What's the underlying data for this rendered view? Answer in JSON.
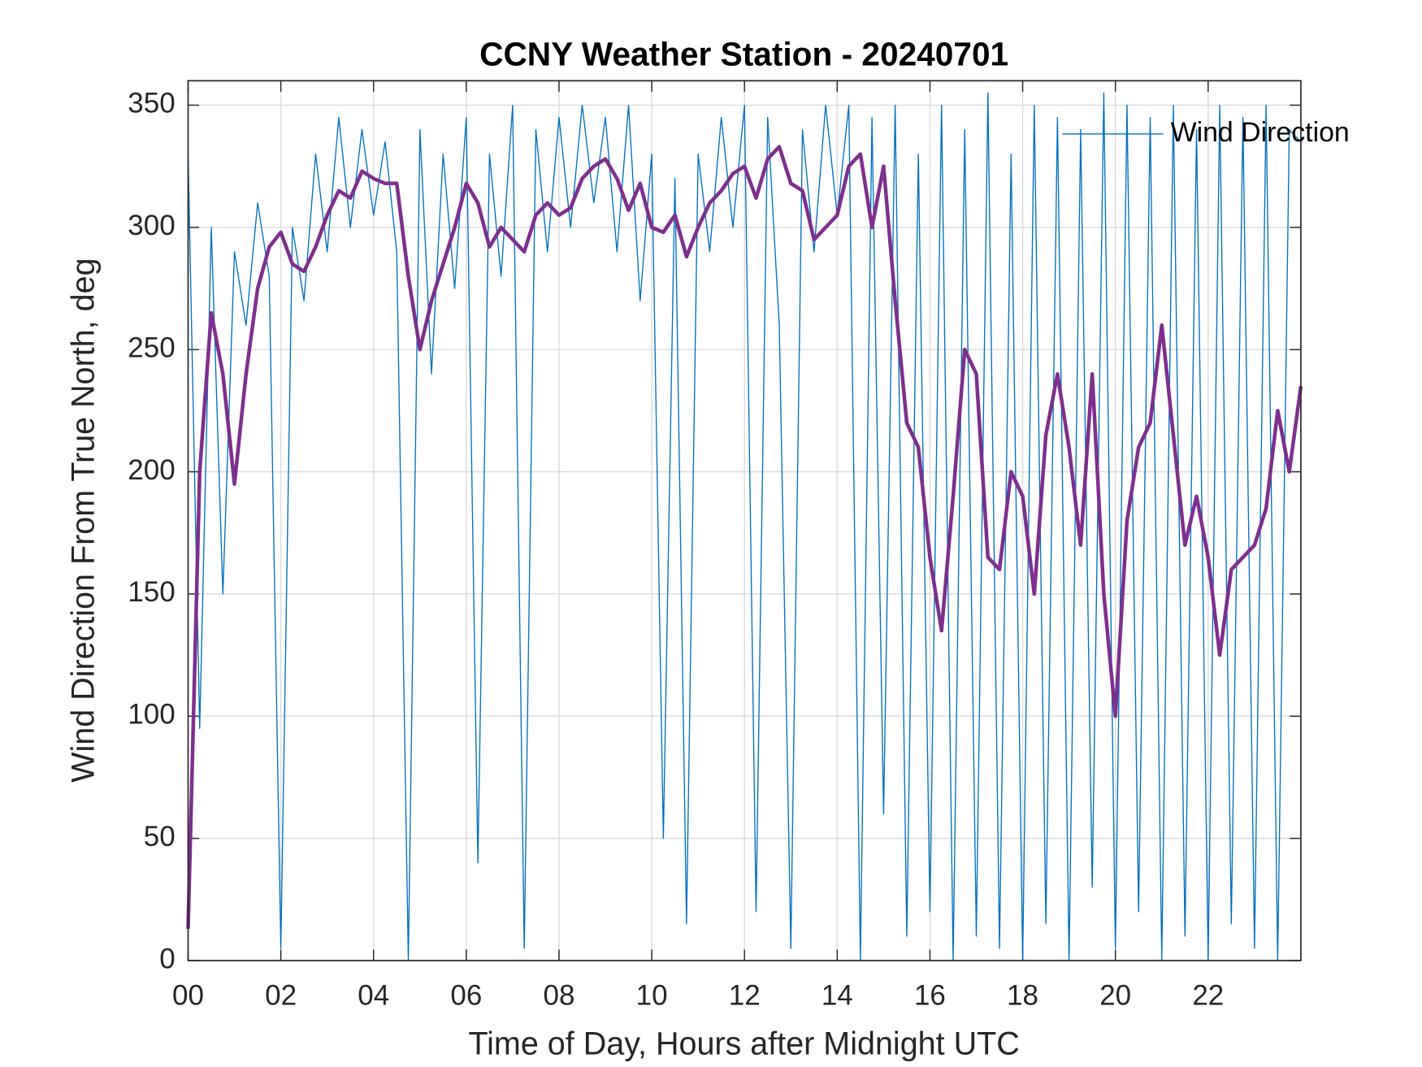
{
  "chart_data": {
    "type": "line",
    "title": "CCNY Weather Station - 20240701",
    "xlabel": "Time of Day, Hours after Midnight UTC",
    "ylabel": "Wind Direction From True North, deg",
    "x": [
      0,
      0.25,
      0.5,
      0.75,
      1,
      1.25,
      1.5,
      1.75,
      2,
      2.25,
      2.5,
      2.75,
      3,
      3.25,
      3.5,
      3.75,
      4,
      4.25,
      4.5,
      4.75,
      5,
      5.25,
      5.5,
      5.75,
      6,
      6.25,
      6.5,
      6.75,
      7,
      7.25,
      7.5,
      7.75,
      8,
      8.25,
      8.5,
      8.75,
      9,
      9.25,
      9.5,
      9.75,
      10,
      10.25,
      10.5,
      10.75,
      11,
      11.25,
      11.5,
      11.75,
      12,
      12.25,
      12.5,
      12.75,
      13,
      13.25,
      13.5,
      13.75,
      14,
      14.25,
      14.5,
      14.75,
      15,
      15.25,
      15.5,
      15.75,
      16,
      16.25,
      16.5,
      16.75,
      17,
      17.25,
      17.5,
      17.75,
      18,
      18.25,
      18.5,
      18.75,
      19,
      19.25,
      19.5,
      19.75,
      20,
      20.25,
      20.5,
      20.75,
      21,
      21.25,
      21.5,
      21.75,
      22,
      22.25,
      22.5,
      22.75,
      23,
      23.25,
      23.5,
      23.75,
      24
    ],
    "series": [
      {
        "name": "Wind Direction",
        "color": "#0072BD",
        "width": 1.2,
        "values": [
          330,
          95,
          300,
          150,
          290,
          260,
          310,
          280,
          5,
          300,
          270,
          330,
          290,
          345,
          300,
          340,
          305,
          335,
          290,
          0,
          340,
          240,
          330,
          275,
          345,
          40,
          330,
          280,
          350,
          5,
          340,
          290,
          345,
          300,
          350,
          310,
          345,
          290,
          350,
          270,
          330,
          50,
          320,
          15,
          330,
          290,
          345,
          300,
          350,
          20,
          345,
          260,
          5,
          340,
          290,
          350,
          305,
          350,
          0,
          345,
          60,
          350,
          10,
          330,
          20,
          350,
          0,
          340,
          10,
          355,
          5,
          330,
          0,
          350,
          15,
          345,
          0,
          340,
          30,
          355,
          5,
          350,
          20,
          345,
          0,
          350,
          10,
          340,
          0,
          350,
          15,
          345,
          5,
          350,
          0,
          340,
          335
        ]
      },
      {
        "color": "#7E2F8E",
        "width": 4,
        "values": [
          13,
          200,
          265,
          240,
          195,
          240,
          275,
          292,
          298,
          285,
          282,
          292,
          305,
          315,
          312,
          323,
          320,
          318,
          318,
          280,
          250,
          270,
          285,
          300,
          318,
          310,
          292,
          300,
          295,
          290,
          305,
          310,
          305,
          308,
          320,
          325,
          328,
          320,
          307,
          318,
          300,
          298,
          305,
          288,
          300,
          310,
          315,
          322,
          325,
          312,
          328,
          333,
          318,
          315,
          295,
          300,
          305,
          325,
          330,
          300,
          325,
          270,
          220,
          210,
          165,
          135,
          190,
          250,
          240,
          165,
          160,
          200,
          190,
          150,
          215,
          240,
          210,
          170,
          240,
          150,
          100,
          180,
          210,
          220,
          260,
          215,
          170,
          190,
          165,
          125,
          160,
          165,
          170,
          185,
          225,
          200,
          235
        ]
      }
    ],
    "xlim": [
      0,
      24
    ],
    "xticks": [
      {
        "value": 0,
        "label": "00"
      },
      {
        "value": 2,
        "label": "02"
      },
      {
        "value": 4,
        "label": "04"
      },
      {
        "value": 6,
        "label": "06"
      },
      {
        "value": 8,
        "label": "08"
      },
      10,
      12,
      14,
      16,
      18,
      20,
      22
    ],
    "ylim": [
      0,
      360
    ],
    "yticks": [
      0,
      50,
      100,
      150,
      200,
      250,
      300,
      350
    ],
    "grid": true,
    "legend": "northeast"
  }
}
